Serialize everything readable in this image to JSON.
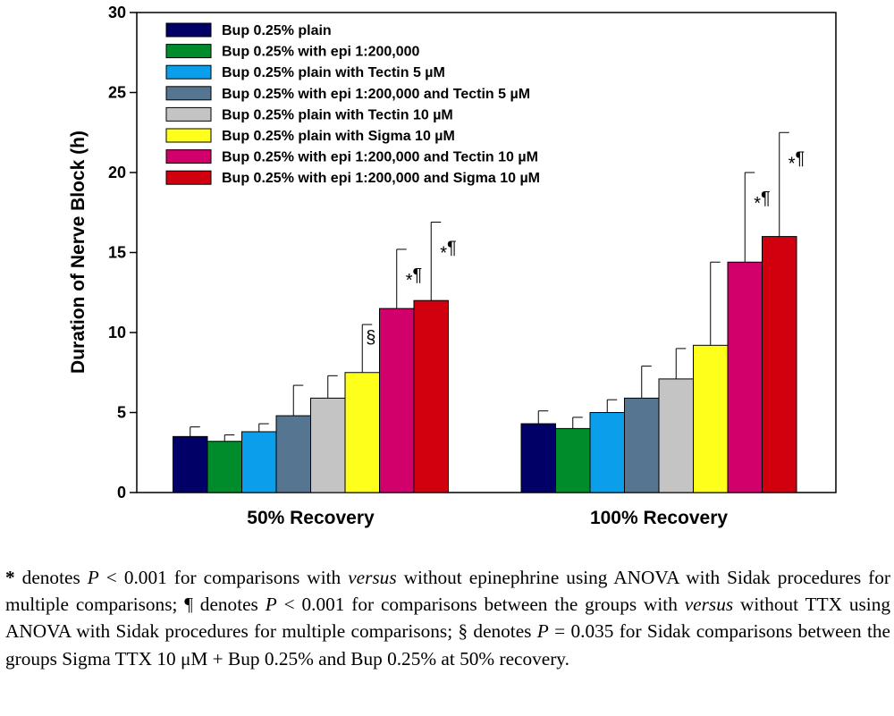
{
  "chart_data": {
    "type": "bar",
    "ylabel": "Duration of Nerve Block (h)",
    "ylim": [
      0,
      30
    ],
    "yticks": [
      0,
      5,
      10,
      15,
      20,
      25,
      30
    ],
    "grid": false,
    "legend_position": "top-left",
    "categories": [
      "50% Recovery",
      "100% Recovery"
    ],
    "series": [
      {
        "name": "Bup 0.25% plain",
        "color": "#000066",
        "values": [
          3.5,
          4.3
        ],
        "error": [
          0.6,
          0.8
        ],
        "annotations": [
          "",
          ""
        ]
      },
      {
        "name": "Bup 0.25% with epi 1:200,000",
        "color": "#008C2A",
        "values": [
          3.2,
          4.0
        ],
        "error": [
          0.4,
          0.7
        ],
        "annotations": [
          "",
          ""
        ]
      },
      {
        "name": "Bup 0.25% plain with Tectin 5 µM",
        "color": "#0B9EEB",
        "values": [
          3.8,
          5.0
        ],
        "error": [
          0.5,
          0.8
        ],
        "annotations": [
          "",
          ""
        ]
      },
      {
        "name": "Bup 0.25% with epi 1:200,000 and Tectin 5 µM",
        "color": "#557591",
        "values": [
          4.8,
          5.9
        ],
        "error": [
          1.9,
          2.0
        ],
        "annotations": [
          "",
          ""
        ]
      },
      {
        "name": "Bup 0.25% plain with Tectin 10 µM",
        "color": "#C4C4C4",
        "values": [
          5.9,
          7.1
        ],
        "error": [
          1.4,
          1.9
        ],
        "annotations": [
          "",
          ""
        ]
      },
      {
        "name": "Bup 0.25% plain with Sigma 10 µM",
        "color": "#FFFF1C",
        "values": [
          7.5,
          9.2
        ],
        "error": [
          3.0,
          5.2
        ],
        "annotations": [
          "§",
          ""
        ]
      },
      {
        "name": "Bup 0.25% with epi 1:200,000 and Tectin 10 µM",
        "color": "#D1006A",
        "values": [
          11.5,
          14.4
        ],
        "error": [
          3.7,
          5.6
        ],
        "annotations": [
          "*¶",
          "*¶"
        ]
      },
      {
        "name": "Bup 0.25% with epi 1:200,000 and Sigma 10 µM",
        "color": "#D1000F",
        "values": [
          12.0,
          16.0
        ],
        "error": [
          4.9,
          6.5
        ],
        "annotations": [
          "*¶",
          "*¶"
        ]
      }
    ]
  },
  "caption": {
    "p1_sym": "*",
    "p1_a": " denotes ",
    "p1_P": "P",
    "p1_b": " < 0.001 for comparisons with ",
    "p1_versus": "versus",
    "p1_c": " without epinephrine using ANOVA with Sidak procedures for multiple comparisons; ¶ denotes ",
    "p2_P": "P",
    "p2_b": " < 0.001 for comparisons between the groups with ",
    "p2_versus": "versus",
    "p2_c": " without TTX using ANOVA with Sidak procedures for multiple comparisons; § denotes ",
    "p3_P": "P",
    "p3_b": " = 0.035 for Sidak comparisons between the groups Sigma TTX 10 μM + Bup 0.25% and Bup 0.25% at 50% recovery."
  }
}
